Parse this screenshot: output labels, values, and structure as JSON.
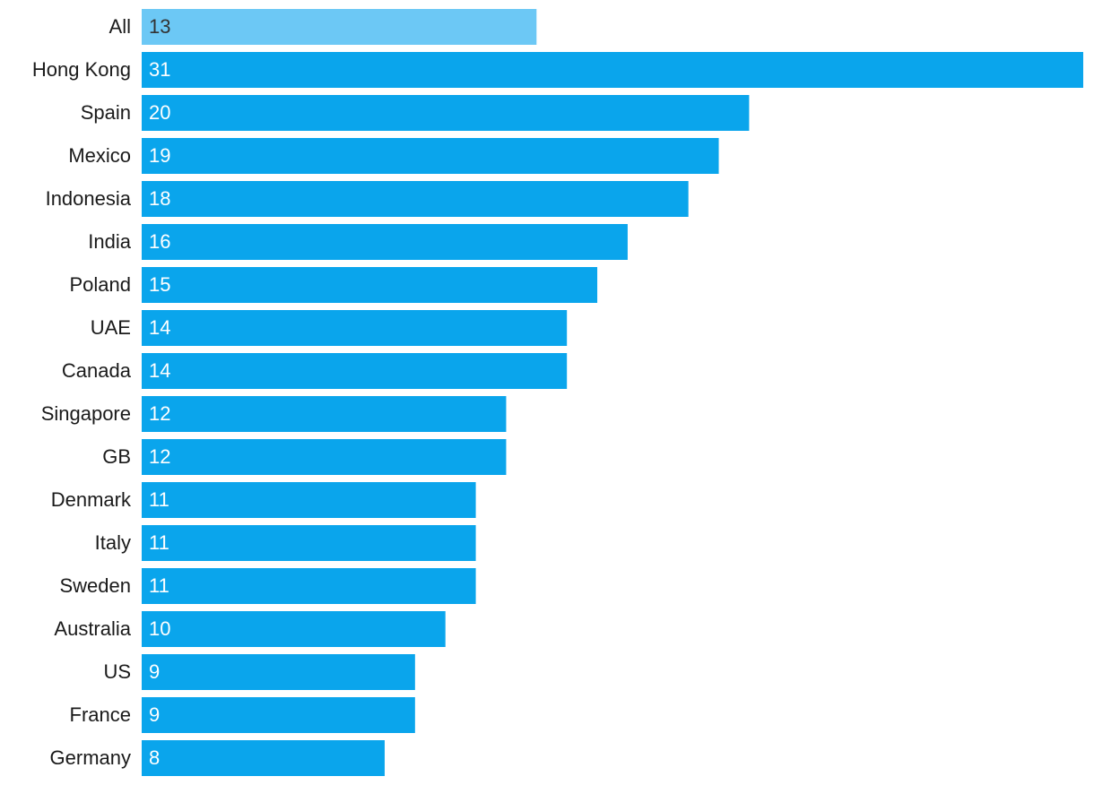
{
  "chart_data": {
    "type": "bar",
    "orientation": "horizontal",
    "categories": [
      "All",
      "Hong Kong",
      "Spain",
      "Mexico",
      "Indonesia",
      "India",
      "Poland",
      "UAE",
      "Canada",
      "Singapore",
      "GB",
      "Denmark",
      "Italy",
      "Sweden",
      "Australia",
      "US",
      "France",
      "Germany"
    ],
    "values": [
      13,
      31,
      20,
      19,
      18,
      16,
      15,
      14,
      14,
      12,
      12,
      11,
      11,
      11,
      10,
      9,
      9,
      8
    ],
    "colors": [
      "#6cc8f5",
      "#0aa5ec",
      "#0aa5ec",
      "#0aa5ec",
      "#0aa5ec",
      "#0aa5ec",
      "#0aa5ec",
      "#0aa5ec",
      "#0aa5ec",
      "#0aa5ec",
      "#0aa5ec",
      "#0aa5ec",
      "#0aa5ec",
      "#0aa5ec",
      "#0aa5ec",
      "#0aa5ec",
      "#0aa5ec",
      "#0aa5ec"
    ]
  }
}
